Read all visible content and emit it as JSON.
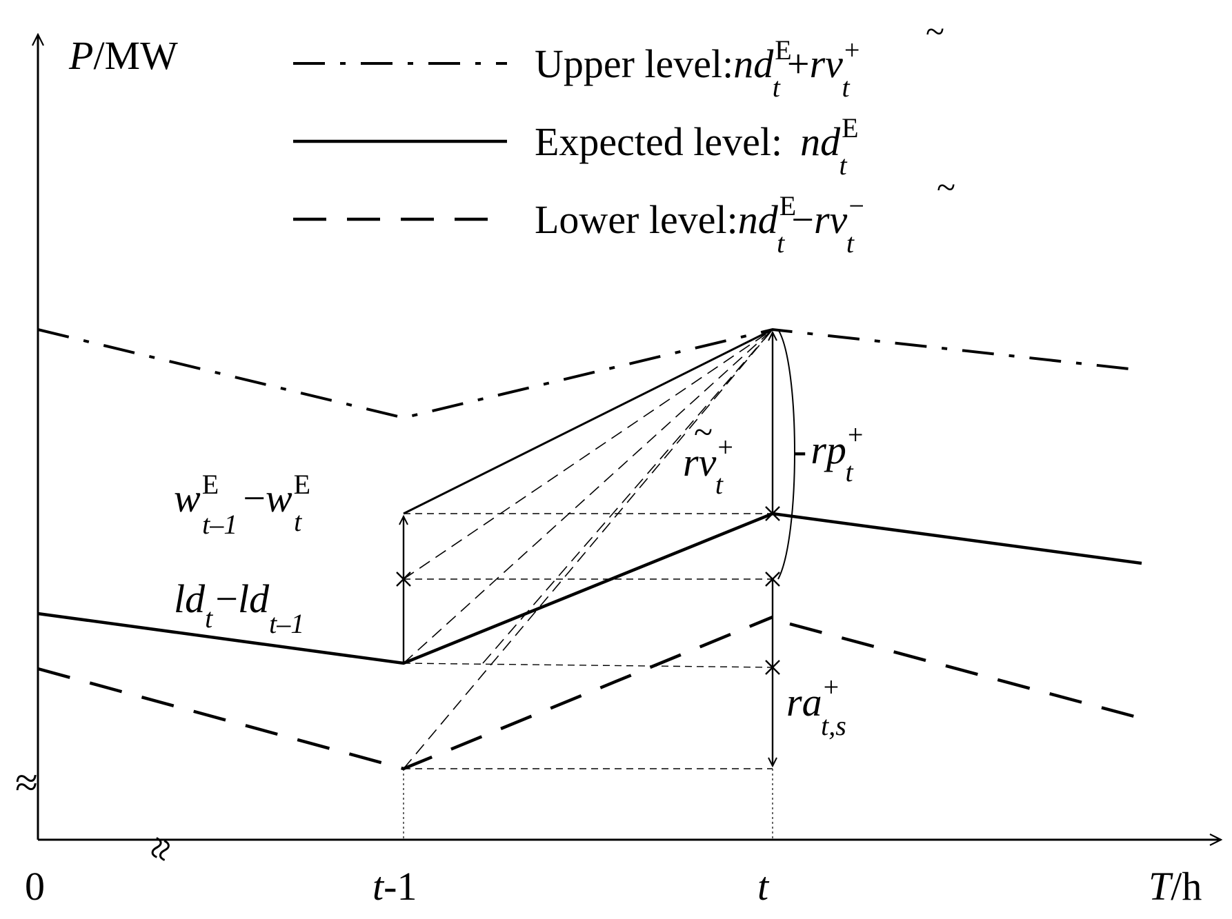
{
  "axes": {
    "y_label_italic": "P",
    "y_label_unit": "/MW",
    "x_label_italic": "T",
    "x_label_unit": "/h",
    "origin": "0",
    "tick_t_minus_1_var": "t",
    "tick_t_minus_1_rest": "-1",
    "tick_t": "t"
  },
  "legend": {
    "upper": {
      "text": "Upper level:",
      "math": {
        "a": "nd",
        "a_sub": "t",
        "a_sup": "E",
        "op": "+",
        "b": "rv",
        "b_sub": "t",
        "b_sup": "+"
      }
    },
    "expected": {
      "text": "Expected level:",
      "math": {
        "a": "nd",
        "a_sub": "t",
        "a_sup": "E"
      }
    },
    "lower": {
      "text": "Lower level:",
      "math": {
        "a": "nd",
        "a_sub": "t",
        "a_sup": "E",
        "op": "−",
        "b": "rv",
        "b_sub": "t",
        "b_sup": "−"
      }
    }
  },
  "annotations": {
    "w_diff": {
      "a": "w",
      "a_sub": "t–1",
      "a_sup": "E",
      "op": "−",
      "b": "w",
      "b_sub": "t",
      "b_sup": "E"
    },
    "ld_diff": {
      "a": "ld",
      "a_sub": "t",
      "op": "−",
      "b": "ld",
      "b_sub": "t–1"
    },
    "rv_t": {
      "a": "rv",
      "a_sub": "t",
      "a_sup": "+"
    },
    "rp_t": {
      "dash": "-",
      "a": "rp",
      "a_sub": "t",
      "a_sup": "+"
    },
    "ra_ts": {
      "a": "ra",
      "a_sub": "t,s",
      "a_sup": "+"
    }
  },
  "break_marks": {
    "y_axis": "≈",
    "x_axis": "≈"
  }
}
